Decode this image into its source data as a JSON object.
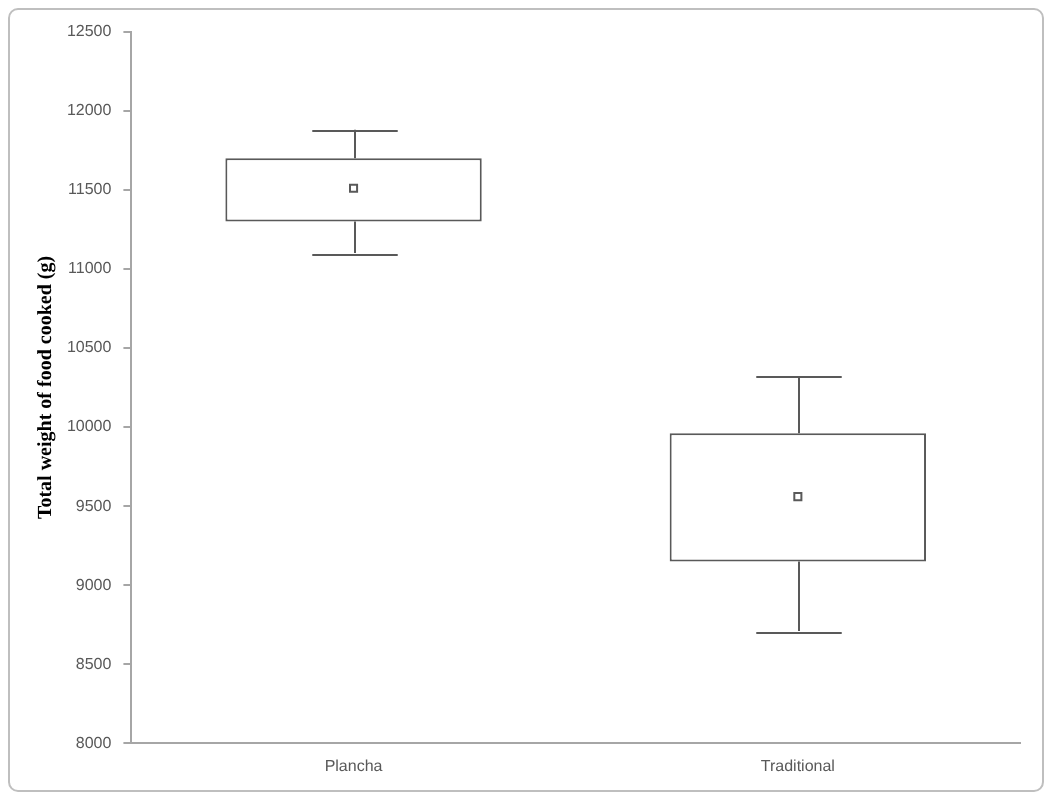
{
  "chart_data": {
    "type": "box",
    "ylabel": "Total weight of food cooked (g)",
    "categories": [
      "Plancha",
      "Traditional"
    ],
    "color": "#595959",
    "marker": "square",
    "boxes": [
      {
        "low": 11100,
        "q1": 11300,
        "median": 11510,
        "q3": 11700,
        "high": 11880
      },
      {
        "low": 8710,
        "q1": 9150,
        "median": 9560,
        "q3": 9960,
        "high": 10320
      }
    ],
    "ylim": [
      8000,
      12500
    ],
    "yticks": [
      8000,
      8500,
      9000,
      9500,
      10000,
      10500,
      11000,
      11500,
      12000,
      12500
    ]
  }
}
